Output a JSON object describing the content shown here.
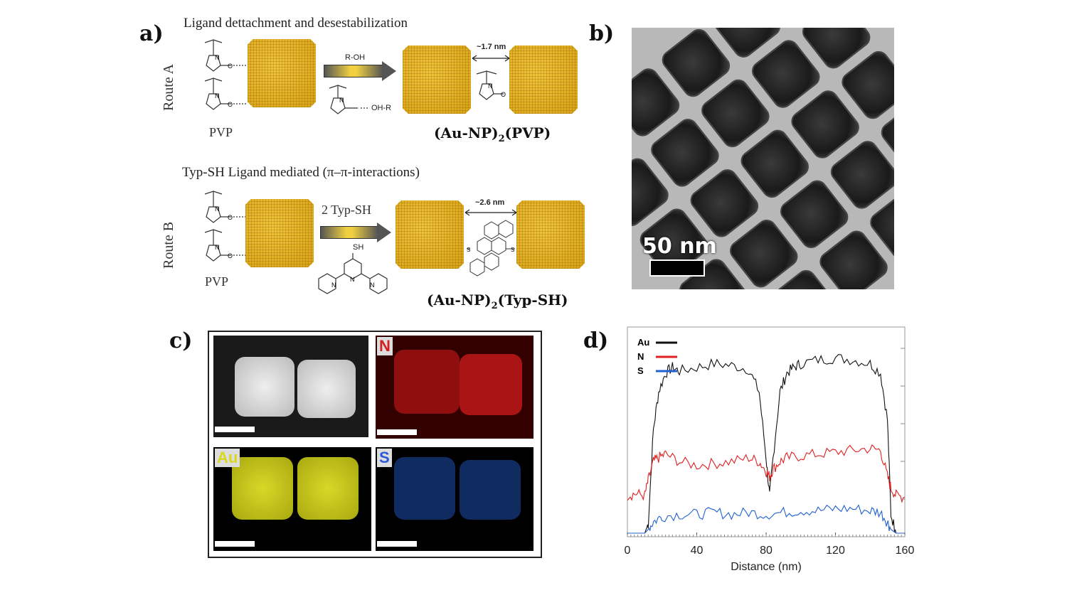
{
  "panels": {
    "a": "a)",
    "b": "b)",
    "c": "c)",
    "d": "d)"
  },
  "route_a": {
    "route_label": "Route A",
    "caption": "Ligand dettachment and desestabilization",
    "pvp_label": "PVP",
    "reagent": "R-OH",
    "reagent_complex": "OH-R",
    "spacing": "~1.7 nm",
    "product_main": "(Au-NP)",
    "product_sub": "2",
    "product_tail": "(PVP)"
  },
  "route_b": {
    "route_label": "Route B",
    "caption": "Typ-SH Ligand mediated (π–π-interactions)",
    "pvp_label": "PVP",
    "reagent": "2 Typ-SH",
    "spacing": "~2.6 nm",
    "sh_label": "SH",
    "product_main": "(Au-NP)",
    "product_sub": "2",
    "product_tail": "(Typ-SH)"
  },
  "tem": {
    "scale_label": "50 nm"
  },
  "eds_maps": [
    {
      "label": "",
      "color": "#d8d8d8"
    },
    {
      "label": "N",
      "color": "#d42020"
    },
    {
      "label": "Au",
      "color": "#d8d820"
    },
    {
      "label": "S",
      "color": "#2a5ad8"
    }
  ],
  "chart_data": {
    "type": "line",
    "xlabel": "Distance (nm)",
    "ylabel": "",
    "xlim": [
      0,
      160
    ],
    "x_ticks": [
      "0",
      "40",
      "80",
      "120",
      "160"
    ],
    "legend_position": "top-left",
    "series": [
      {
        "name": "Au",
        "color": "#111111",
        "x": [
          0,
          10,
          12,
          15,
          18,
          22,
          26,
          30,
          40,
          50,
          60,
          70,
          76,
          80,
          82,
          84,
          88,
          92,
          96,
          100,
          110,
          120,
          130,
          140,
          146,
          150,
          152,
          155,
          160
        ],
        "y": [
          0.0,
          0.0,
          0.05,
          0.55,
          0.75,
          0.85,
          0.88,
          0.86,
          0.88,
          0.9,
          0.89,
          0.87,
          0.75,
          0.4,
          0.2,
          0.4,
          0.75,
          0.85,
          0.88,
          0.9,
          0.92,
          0.93,
          0.92,
          0.9,
          0.85,
          0.6,
          0.1,
          0.0,
          0.0
        ]
      },
      {
        "name": "N",
        "color": "#e02020",
        "x": [
          0,
          5,
          10,
          12,
          15,
          18,
          22,
          30,
          40,
          50,
          60,
          70,
          76,
          80,
          82,
          84,
          88,
          92,
          100,
          110,
          120,
          130,
          140,
          146,
          150,
          152,
          155,
          160
        ],
        "y": [
          0.2,
          0.21,
          0.2,
          0.28,
          0.38,
          0.4,
          0.42,
          0.38,
          0.36,
          0.37,
          0.38,
          0.4,
          0.38,
          0.33,
          0.3,
          0.34,
          0.38,
          0.4,
          0.41,
          0.42,
          0.43,
          0.44,
          0.45,
          0.44,
          0.3,
          0.24,
          0.2,
          0.19
        ]
      },
      {
        "name": "S",
        "color": "#2060d0",
        "x": [
          0,
          10,
          12,
          15,
          20,
          30,
          40,
          50,
          60,
          70,
          80,
          90,
          100,
          110,
          120,
          130,
          140,
          146,
          150,
          152,
          155,
          160
        ],
        "y": [
          0.0,
          0.0,
          0.02,
          0.06,
          0.09,
          0.1,
          0.1,
          0.11,
          0.1,
          0.11,
          0.1,
          0.11,
          0.12,
          0.12,
          0.13,
          0.13,
          0.12,
          0.11,
          0.06,
          0.02,
          0.0,
          0.0
        ]
      }
    ]
  }
}
